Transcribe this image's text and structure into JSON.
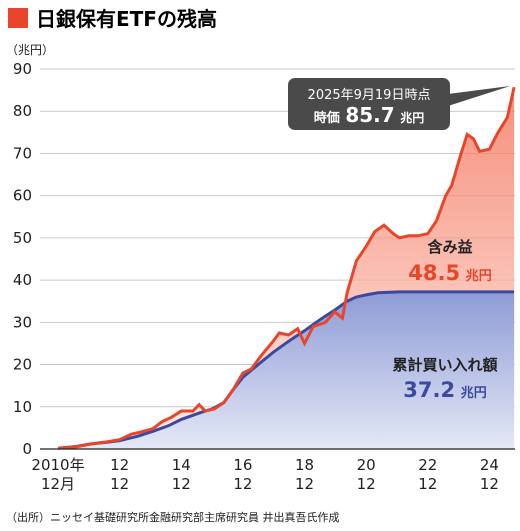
{
  "header": {
    "title": "日銀保有ETFの残高",
    "accent_color": "#e8452b"
  },
  "footer": {
    "source": "（出所）ニッセイ基礎研究所金融研究部主席研究員 井出真吾氏作成"
  },
  "chart_data": {
    "type": "area",
    "title": "日銀保有ETFの残高",
    "ylabel": "（兆円）",
    "ylim": [
      0,
      90
    ],
    "yticks": [
      0,
      10,
      20,
      30,
      40,
      50,
      60,
      70,
      80,
      90
    ],
    "xlim": [
      2010.92,
      2025.75
    ],
    "xticks": [
      {
        "x": 2010.92,
        "line1": "2010年",
        "line2": "12月"
      },
      {
        "x": 2012.92,
        "line1": "12",
        "line2": "12"
      },
      {
        "x": 2014.92,
        "line1": "14",
        "line2": "12"
      },
      {
        "x": 2016.92,
        "line1": "16",
        "line2": "12"
      },
      {
        "x": 2018.92,
        "line1": "18",
        "line2": "12"
      },
      {
        "x": 2020.92,
        "line1": "20",
        "line2": "12"
      },
      {
        "x": 2022.92,
        "line1": "22",
        "line2": "12"
      },
      {
        "x": 2024.92,
        "line1": "24",
        "line2": "12"
      }
    ],
    "grid": "horizontal",
    "series": [
      {
        "name": "時価",
        "color": "#e8452b",
        "x": [
          2010.92,
          2011.5,
          2012.0,
          2012.5,
          2012.92,
          2013.3,
          2013.6,
          2014.0,
          2014.3,
          2014.6,
          2014.92,
          2015.3,
          2015.5,
          2015.7,
          2016.0,
          2016.3,
          2016.6,
          2016.92,
          2017.2,
          2017.5,
          2017.9,
          2018.1,
          2018.4,
          2018.7,
          2018.92,
          2019.2,
          2019.6,
          2019.9,
          2020.15,
          2020.3,
          2020.6,
          2020.92,
          2021.2,
          2021.5,
          2021.8,
          2022.0,
          2022.3,
          2022.6,
          2022.92,
          2023.2,
          2023.5,
          2023.7,
          2024.0,
          2024.2,
          2024.4,
          2024.6,
          2024.92,
          2025.2,
          2025.5,
          2025.72
        ],
        "values": [
          0.2,
          0.5,
          1.2,
          1.7,
          2.2,
          3.5,
          4.0,
          4.8,
          6.5,
          7.5,
          9.0,
          9.0,
          10.5,
          9.0,
          9.5,
          11.0,
          14.0,
          18.0,
          19.0,
          22.0,
          25.5,
          27.5,
          27.0,
          28.5,
          25.0,
          29.0,
          30.0,
          32.5,
          31.0,
          37.0,
          44.5,
          48.0,
          51.5,
          53.0,
          51.0,
          50.0,
          50.5,
          50.5,
          51.0,
          54.0,
          60.0,
          62.5,
          70.0,
          74.5,
          73.5,
          70.5,
          71.0,
          75.0,
          78.5,
          85.7
        ]
      },
      {
        "name": "累計買い入れ額",
        "color": "#3b4a9e",
        "x": [
          2010.92,
          2011.5,
          2012.0,
          2012.5,
          2012.92,
          2013.5,
          2014.0,
          2014.5,
          2014.92,
          2015.5,
          2015.92,
          2016.3,
          2016.6,
          2016.92,
          2017.5,
          2017.92,
          2018.5,
          2018.92,
          2019.3,
          2019.6,
          2019.92,
          2020.3,
          2020.6,
          2020.92,
          2021.3,
          2021.6,
          2022.0,
          2023.0,
          2024.0,
          2025.72
        ],
        "values": [
          0.2,
          0.6,
          1.2,
          1.6,
          2.0,
          3.0,
          4.2,
          5.5,
          7.0,
          8.5,
          9.5,
          11.0,
          14.0,
          17.0,
          20.5,
          23.0,
          26.0,
          28.0,
          30.0,
          31.5,
          33.0,
          35.0,
          36.0,
          36.5,
          37.0,
          37.1,
          37.2,
          37.2,
          37.2,
          37.2
        ]
      }
    ],
    "annotations": {
      "callout_line1": "2025年9月19日時点",
      "callout_label": "時価",
      "callout_value": "85.7",
      "callout_unit": "兆円",
      "gain_label": "含み益",
      "gain_value": "48.5",
      "gain_unit": "兆円",
      "gain_color": "#e8452b",
      "purchase_label": "累計買い入れ額",
      "purchase_value": "37.2",
      "purchase_unit": "兆円",
      "purchase_color": "#3b4a9e",
      "callout_bg": "#4a4a4a"
    }
  }
}
